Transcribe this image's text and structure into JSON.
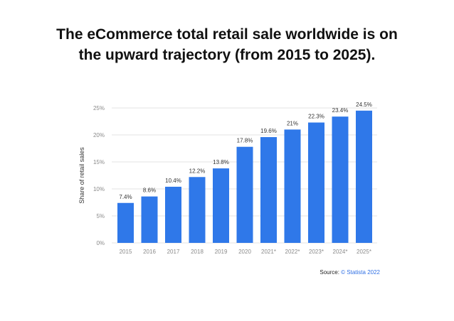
{
  "header": {
    "title_line1": "The eCommerce total retail sale worldwide is on",
    "title_line2": "the upward trajectory (from 2015 to 2025)."
  },
  "source": {
    "label": "Source:",
    "link": "© Statista 2022"
  },
  "colors": {
    "bar": "#2f78e9",
    "grid": "#e3e3e3",
    "tick_text": "#8a8a8a",
    "label_text": "#333333"
  },
  "chart_data": {
    "type": "bar",
    "title": "",
    "xlabel": "",
    "ylabel": "Share of retail sales",
    "categories": [
      "2015",
      "2016",
      "2017",
      "2018",
      "2019",
      "2020",
      "2021*",
      "2022*",
      "2023*",
      "2024*",
      "2025*"
    ],
    "values": [
      7.4,
      8.6,
      10.4,
      12.2,
      13.8,
      17.8,
      19.6,
      21,
      22.3,
      23.4,
      24.5
    ],
    "value_labels": [
      "7.4%",
      "8.6%",
      "10.4%",
      "12.2%",
      "13.8%",
      "17.8%",
      "19.6%",
      "21%",
      "22.3%",
      "23.4%",
      "24.5%"
    ],
    "y_ticks": [
      0,
      5,
      10,
      15,
      20,
      25
    ],
    "y_tick_labels": [
      "0%",
      "5%",
      "10%",
      "15%",
      "20%",
      "25%"
    ],
    "ylim": [
      0,
      25
    ],
    "grid": true,
    "legend": false
  }
}
